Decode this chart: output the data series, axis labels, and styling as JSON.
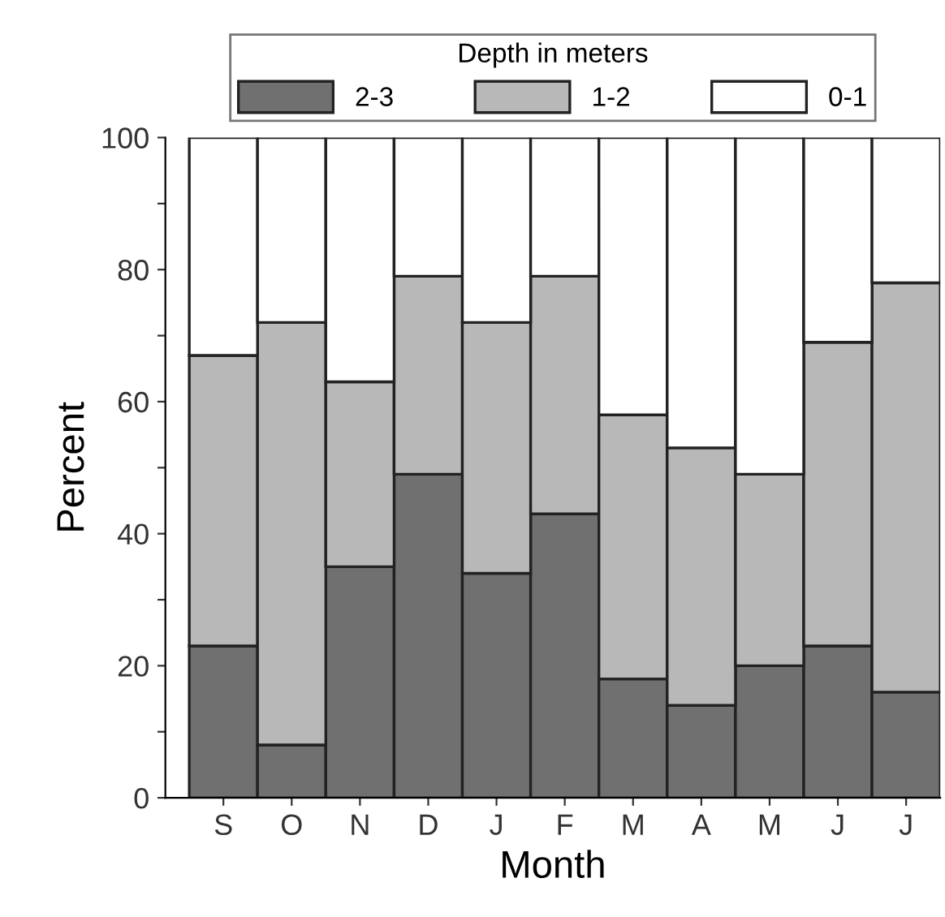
{
  "chart_data": {
    "type": "bar",
    "stacked": true,
    "xlabel": "Month",
    "ylabel": "Percent",
    "legend_title": "Depth in meters",
    "legend": "top",
    "categories": [
      "S",
      "O",
      "N",
      "D",
      "J",
      "F",
      "M",
      "A",
      "M",
      "J",
      "J"
    ],
    "series": [
      {
        "name": "2-3",
        "color": "#707070",
        "values": [
          23,
          8,
          35,
          49,
          34,
          43,
          18,
          14,
          20,
          23,
          16
        ]
      },
      {
        "name": "1-2",
        "color": "#b8b8b8",
        "values": [
          44,
          64,
          28,
          30,
          38,
          36,
          40,
          39,
          29,
          46,
          62
        ]
      },
      {
        "name": "0-1",
        "color": "#ffffff",
        "values": [
          33,
          28,
          37,
          21,
          28,
          21,
          42,
          47,
          51,
          31,
          22
        ]
      }
    ],
    "ylim": [
      0,
      100
    ],
    "yticks": [
      0,
      {
        "value": 10,
        "label": null
      },
      20,
      {
        "value": 30,
        "label": null
      },
      40,
      {
        "value": 50,
        "label": null
      },
      60,
      {
        "value": 70,
        "label": null
      },
      80,
      {
        "value": 90,
        "label": null
      },
      100
    ]
  }
}
